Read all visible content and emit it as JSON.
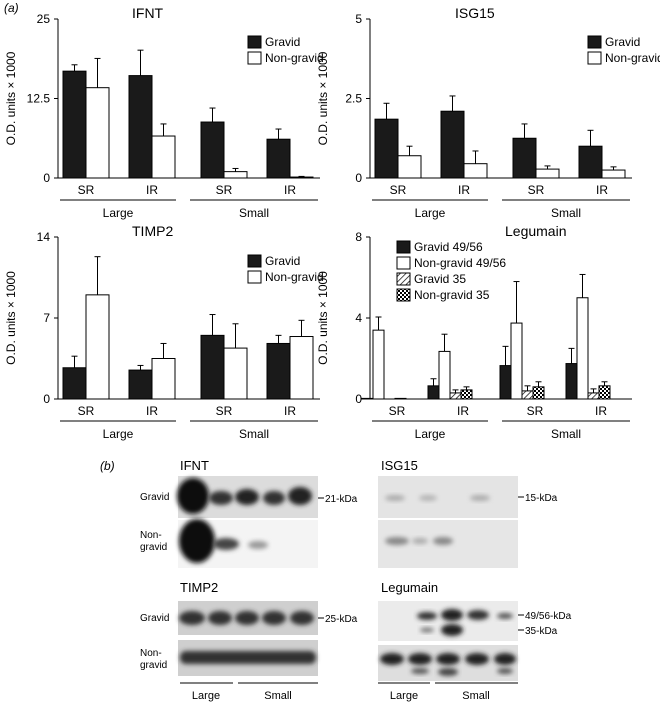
{
  "panel_labels": {
    "a": "(a)",
    "b": "(b)"
  },
  "ylabel": "O.D. units × 1000",
  "colors": {
    "gravid": "#1a1a1a",
    "nongravid": "#ffffff",
    "stroke": "#000000"
  },
  "chart_data": [
    {
      "type": "bar",
      "title": "IFNT",
      "ylabel": "O.D. units × 1000",
      "ylim": [
        0,
        25
      ],
      "yticks": [
        "0",
        "12.5",
        "25"
      ],
      "categories": [
        "SR",
        "IR",
        "SR",
        "IR"
      ],
      "groups": [
        "Large",
        "Small"
      ],
      "series": [
        {
          "name": "Gravid",
          "fill": "gravid",
          "values": [
            16.8,
            16.1,
            8.8,
            6.1
          ],
          "errors": [
            1.0,
            4.0,
            2.2,
            1.6
          ]
        },
        {
          "name": "Non-gravid",
          "fill": "nongravid",
          "values": [
            14.2,
            6.6,
            1.0,
            0.15
          ],
          "errors": [
            4.6,
            1.9,
            0.5,
            0.1
          ]
        }
      ],
      "legend": "top-right"
    },
    {
      "type": "bar",
      "title": "ISG15",
      "ylabel": "O.D. units × 1000",
      "ylim": [
        0,
        5
      ],
      "yticks": [
        "0",
        "2.5",
        "5"
      ],
      "categories": [
        "SR",
        "IR",
        "SR",
        "IR"
      ],
      "groups": [
        "Large",
        "Small"
      ],
      "series": [
        {
          "name": "Gravid",
          "fill": "gravid",
          "values": [
            1.85,
            2.1,
            1.25,
            1.0
          ],
          "errors": [
            0.5,
            0.48,
            0.45,
            0.5
          ]
        },
        {
          "name": "Non-gravid",
          "fill": "nongravid",
          "values": [
            0.7,
            0.45,
            0.28,
            0.25
          ],
          "errors": [
            0.3,
            0.4,
            0.1,
            0.1
          ]
        }
      ],
      "legend": "top-right"
    },
    {
      "type": "bar",
      "title": "TIMP2",
      "ylabel": "O.D. units × 1000",
      "ylim": [
        0,
        14
      ],
      "yticks": [
        "0",
        "7",
        "14"
      ],
      "categories": [
        "SR",
        "IR",
        "SR",
        "IR"
      ],
      "groups": [
        "Large",
        "Small"
      ],
      "series": [
        {
          "name": "Gravid",
          "fill": "gravid",
          "values": [
            2.7,
            2.5,
            5.5,
            4.8
          ],
          "errors": [
            1.0,
            0.4,
            1.8,
            0.7
          ]
        },
        {
          "name": "Non-gravid",
          "fill": "nongravid",
          "values": [
            9.0,
            3.5,
            4.4,
            5.4
          ],
          "errors": [
            3.3,
            1.3,
            2.1,
            1.4
          ]
        }
      ],
      "legend": "top-right"
    },
    {
      "type": "bar",
      "title": "Legumain",
      "ylabel": "O.D. units × 1000",
      "ylim": [
        0,
        8
      ],
      "yticks": [
        "0",
        "4",
        "8"
      ],
      "categories": [
        "SR",
        "IR",
        "SR",
        "IR"
      ],
      "groups": [
        "Large",
        "Small"
      ],
      "series": [
        {
          "name": "Gravid 49/56",
          "fill": "gravid",
          "values": [
            0.03,
            0.65,
            1.65,
            1.75
          ],
          "errors": [
            0.0,
            0.35,
            0.95,
            0.75
          ]
        },
        {
          "name": "Non-gravid 49/56",
          "fill": "nongravid",
          "values": [
            3.4,
            2.35,
            3.75,
            5.0
          ],
          "errors": [
            0.65,
            0.85,
            2.05,
            1.15
          ]
        },
        {
          "name": "Gravid 35",
          "fill": "hatch",
          "values": [
            0.0,
            0.3,
            0.4,
            0.3
          ],
          "errors": [
            0.0,
            0.15,
            0.25,
            0.2
          ]
        },
        {
          "name": "Non-gravid 35",
          "fill": "check",
          "values": [
            0.03,
            0.45,
            0.6,
            0.65
          ],
          "errors": [
            0.0,
            0.15,
            0.25,
            0.2
          ]
        }
      ],
      "legend": "top-left"
    }
  ],
  "blots": {
    "ifnt": {
      "title": "IFNT",
      "rows": [
        "Gravid",
        "Non-\ngravid"
      ],
      "marker": "21-kDa"
    },
    "isg15": {
      "title": "ISG15",
      "marker": "15-kDa"
    },
    "timp2": {
      "title": "TIMP2",
      "rows": [
        "Gravid",
        "Non-\ngravid"
      ],
      "marker": "25-kDa"
    },
    "legumain": {
      "title": "Legumain",
      "markers": [
        "49/56-kDa",
        "35-kDa"
      ]
    },
    "group_labels": [
      "Large",
      "Small"
    ]
  }
}
